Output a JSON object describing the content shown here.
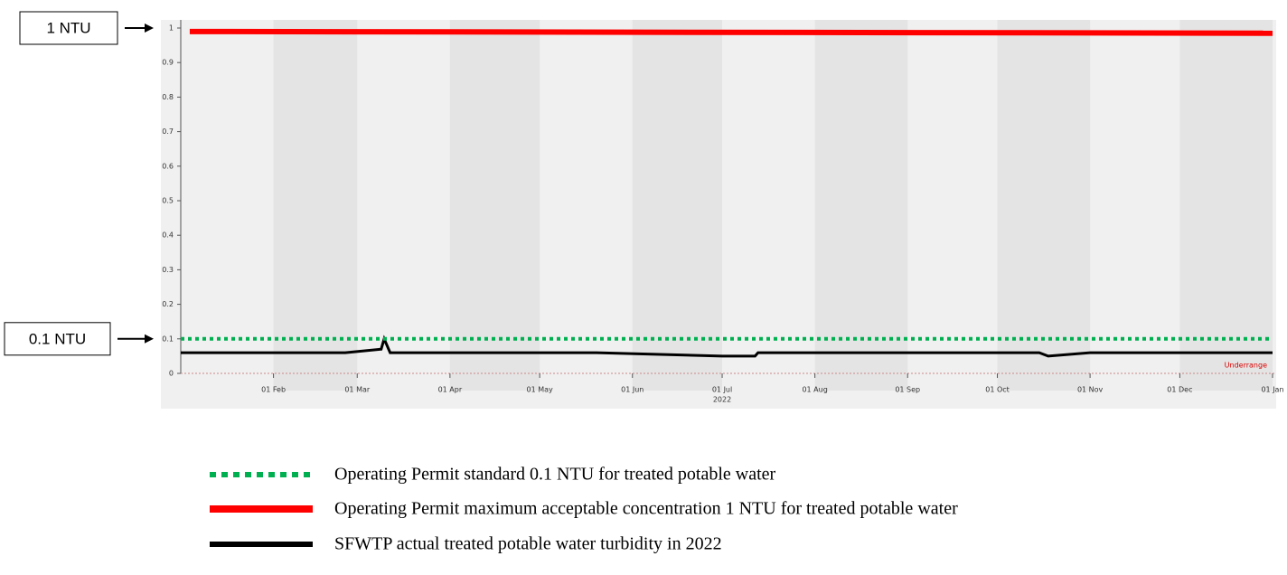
{
  "chart_data": {
    "type": "line",
    "xlim": [
      "2022-01-01",
      "2023-01-01"
    ],
    "ylim": [
      0,
      1
    ],
    "yticks": [
      0,
      0.1,
      0.2,
      0.3,
      0.4,
      0.5,
      0.6,
      0.7,
      0.8,
      0.9,
      1
    ],
    "xticks": [
      {
        "value": "2022-02-01",
        "label": "01 Feb"
      },
      {
        "value": "2022-03-01",
        "label": "01 Mar"
      },
      {
        "value": "2022-04-01",
        "label": "01 Apr"
      },
      {
        "value": "2022-05-01",
        "label": "01 May"
      },
      {
        "value": "2022-06-01",
        "label": "01 Jun"
      },
      {
        "value": "2022-07-01",
        "label": "01 Jul"
      },
      {
        "value": "2022-08-01",
        "label": "01 Aug"
      },
      {
        "value": "2022-09-01",
        "label": "01 Sep"
      },
      {
        "value": "2022-10-01",
        "label": "01 Oct"
      },
      {
        "value": "2022-11-01",
        "label": "01 Nov"
      },
      {
        "value": "2022-12-01",
        "label": "01 Dec"
      },
      {
        "value": "2023-01-01",
        "label": "01 Jan"
      }
    ],
    "x_sublabel": "2022",
    "underrange_label": "Underrange",
    "annotations": [
      {
        "text": "1 NTU",
        "y": 1
      },
      {
        "text": "0.1 NTU",
        "y": 0.1
      }
    ],
    "series": [
      {
        "name": "Operating Permit standard 0.1 NTU for treated potable water",
        "color": "#00b050",
        "style": "dotted",
        "x": [
          "2022-01-01",
          "2023-01-01"
        ],
        "values": [
          0.1,
          0.1
        ]
      },
      {
        "name": "Operating Permit maximum acceptable concentration 1 NTU for treated potable water",
        "color": "#ff0000",
        "style": "thick",
        "x": [
          "2022-01-04",
          "2023-01-01"
        ],
        "values": [
          0.99,
          0.985
        ]
      },
      {
        "name": "SFWTP actual treated potable water turbidity in 2022",
        "color": "#000000",
        "style": "solid",
        "x": [
          "2022-01-01",
          "2022-02-25",
          "2022-03-09",
          "2022-03-10",
          "2022-03-12",
          "2022-05-20",
          "2022-07-01",
          "2022-07-12",
          "2022-07-13",
          "2022-10-15",
          "2022-10-18",
          "2022-11-01",
          "2023-01-01"
        ],
        "values": [
          0.06,
          0.06,
          0.07,
          0.1,
          0.06,
          0.06,
          0.05,
          0.05,
          0.06,
          0.06,
          0.05,
          0.06,
          0.06
        ]
      }
    ]
  }
}
